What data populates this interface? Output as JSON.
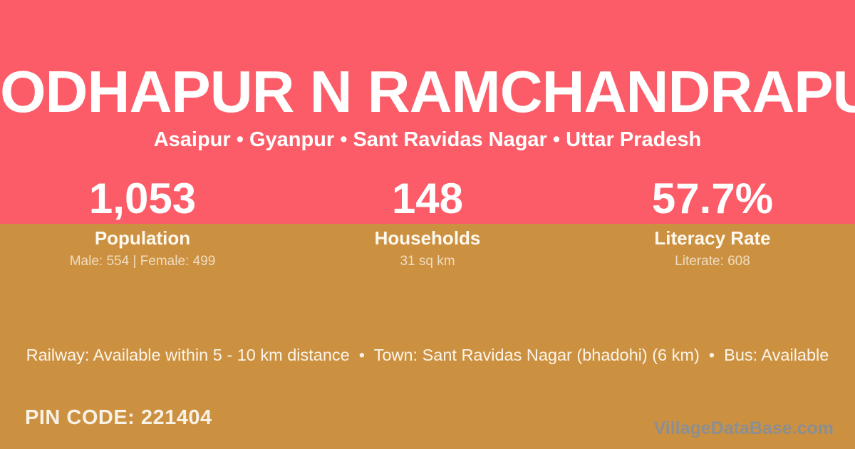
{
  "colors": {
    "top_band": "#fc5c67",
    "bottom_band": "#cc9140",
    "title_text": "#ffffff",
    "muted_text": "rgba(255,255,255,0.68)",
    "pin_text": "#f8f1e5",
    "watermark_text": "#8b8e92"
  },
  "header": {
    "title": "ODHAPUR N RAMCHANDRAPU",
    "subtitle": "Asaipur • Gyanpur • Sant Ravidas Nagar • Uttar Pradesh"
  },
  "stats": [
    {
      "value": "1,053",
      "label": "Population",
      "detail": "Male: 554 | Female: 499"
    },
    {
      "value": "148",
      "label": "Households",
      "detail": "31 sq km"
    },
    {
      "value": "57.7%",
      "label": "Literacy Rate",
      "detail": "Literate: 608"
    }
  ],
  "amenities_line": "Railway: Available within 5 - 10 km distance  •  Town: Sant Ravidas Nagar (bhadohi) (6 km)  •  Bus: Available",
  "footer": {
    "pin_code": "PIN CODE: 221404",
    "watermark": "VillageDataBase.com"
  }
}
